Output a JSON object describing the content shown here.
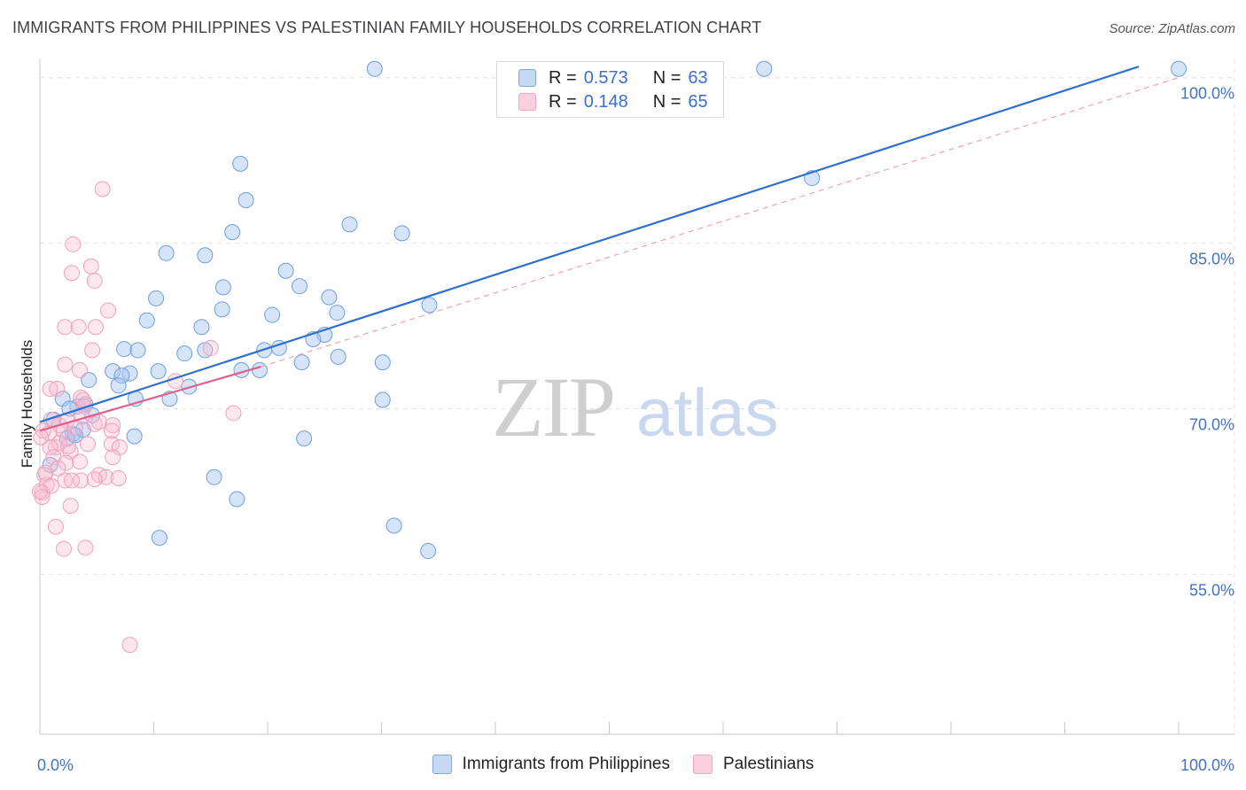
{
  "title": "IMMIGRANTS FROM PHILIPPINES VS PALESTINIAN FAMILY HOUSEHOLDS CORRELATION CHART",
  "source": "Source: ZipAtlas.com",
  "watermark": {
    "zip": "ZIP",
    "atlas": "atlas"
  },
  "colors": {
    "blue_fill": "rgba(164,196,240,0.45)",
    "blue_stroke": "#6f9ee0",
    "blue_line": "#2f6fd0",
    "pink_fill": "rgba(248,186,206,0.35)",
    "pink_stroke": "#f0a0bb",
    "pink_line": "#e0608c",
    "grid": "#e3e3e3",
    "tick_text": "#4472c4"
  },
  "legend_top": [
    {
      "r_label": "R = ",
      "r_value": "0.573",
      "n_label": "N = ",
      "n_value": "63",
      "swatch_fill": "#c5d9f5",
      "swatch_stroke": "#7da6e3"
    },
    {
      "r_label": "R = ",
      "r_value": "0.148",
      "n_label": "N = ",
      "n_value": "65",
      "swatch_fill": "#fcd0de",
      "swatch_stroke": "#f3a6c0"
    }
  ],
  "legend_bottom": [
    {
      "label": "Immigrants from Philippines",
      "swatch_fill": "#c5d9f5",
      "swatch_stroke": "#7da6e3"
    },
    {
      "label": "Palestinians",
      "swatch_fill": "#fcd0de",
      "swatch_stroke": "#f3a6c0"
    }
  ],
  "chart_data": {
    "type": "scatter",
    "title": "IMMIGRANTS FROM PHILIPPINES VS PALESTINIAN FAMILY HOUSEHOLDS CORRELATION CHART",
    "xlabel": "",
    "ylabel": "Family Households",
    "xlim": [
      0,
      100
    ],
    "ylim": [
      40.5,
      101.5
    ],
    "x_tick_labels": [
      {
        "value": 0,
        "label": "0.0%"
      },
      {
        "value": 100,
        "label": "100.0%"
      }
    ],
    "y_tick_labels": [
      {
        "value": 55,
        "label": "55.0%"
      },
      {
        "value": 70,
        "label": "70.0%"
      },
      {
        "value": 85,
        "label": "85.0%"
      },
      {
        "value": 100,
        "label": "100.0%"
      }
    ],
    "y_gridlines": [
      55,
      70,
      85,
      100
    ],
    "series": [
      {
        "name": "Immigrants from Philippines",
        "R": 0.573,
        "N": 63,
        "trend": {
          "x0": 0,
          "y0": 68.8,
          "x1": 96.5,
          "y1": 101.0,
          "style": "solid"
        },
        "points": [
          [
            29.4,
            100.8
          ],
          [
            63.6,
            100.8
          ],
          [
            100,
            100.8
          ],
          [
            17.6,
            92.2
          ],
          [
            67.8,
            90.9
          ],
          [
            18.1,
            88.9
          ],
          [
            16.9,
            86.0
          ],
          [
            27.2,
            86.7
          ],
          [
            31.8,
            85.9
          ],
          [
            11.1,
            84.1
          ],
          [
            14.5,
            83.9
          ],
          [
            21.6,
            82.5
          ],
          [
            16.1,
            81.0
          ],
          [
            22.8,
            81.1
          ],
          [
            25.4,
            80.1
          ],
          [
            10.2,
            80.0
          ],
          [
            34.2,
            79.4
          ],
          [
            16.0,
            79.0
          ],
          [
            20.4,
            78.5
          ],
          [
            26.1,
            78.7
          ],
          [
            9.4,
            78.0
          ],
          [
            14.2,
            77.4
          ],
          [
            25.0,
            76.7
          ],
          [
            24.0,
            76.3
          ],
          [
            30.1,
            74.2
          ],
          [
            7.4,
            75.4
          ],
          [
            8.6,
            75.3
          ],
          [
            12.7,
            75.0
          ],
          [
            14.5,
            75.3
          ],
          [
            19.7,
            75.3
          ],
          [
            21.0,
            75.5
          ],
          [
            23.0,
            74.2
          ],
          [
            26.2,
            74.7
          ],
          [
            6.4,
            73.4
          ],
          [
            7.9,
            73.2
          ],
          [
            7.2,
            73.0
          ],
          [
            4.3,
            72.6
          ],
          [
            10.4,
            73.4
          ],
          [
            17.7,
            73.5
          ],
          [
            19.3,
            73.5
          ],
          [
            6.9,
            72.1
          ],
          [
            13.1,
            72.0
          ],
          [
            8.4,
            70.9
          ],
          [
            11.4,
            70.9
          ],
          [
            2.0,
            70.9
          ],
          [
            3.3,
            70.2
          ],
          [
            4.0,
            70.4
          ],
          [
            30.1,
            70.8
          ],
          [
            2.6,
            70.0
          ],
          [
            4.6,
            69.4
          ],
          [
            1.2,
            69.0
          ],
          [
            2.9,
            67.7
          ],
          [
            3.8,
            68.1
          ],
          [
            8.3,
            67.5
          ],
          [
            2.4,
            67.3
          ],
          [
            23.2,
            67.3
          ],
          [
            3.1,
            67.6
          ],
          [
            0.9,
            64.9
          ],
          [
            15.3,
            63.8
          ],
          [
            17.3,
            61.8
          ],
          [
            31.1,
            59.4
          ],
          [
            10.5,
            58.3
          ],
          [
            34.1,
            57.1
          ]
        ]
      },
      {
        "name": "Palestinians",
        "R": 0.148,
        "N": 65,
        "trend": {
          "x0": 0,
          "y0": 68.0,
          "x1": 19.4,
          "y1": 73.8,
          "style": "solid"
        },
        "trend_extended": {
          "x0": 19.4,
          "y0": 73.8,
          "x1": 100,
          "y1": 100.0,
          "style": "dashed"
        },
        "points": [
          [
            5.5,
            89.9
          ],
          [
            2.9,
            84.9
          ],
          [
            4.5,
            82.9
          ],
          [
            2.8,
            82.3
          ],
          [
            4.8,
            81.6
          ],
          [
            6.0,
            78.9
          ],
          [
            2.2,
            77.4
          ],
          [
            3.4,
            77.4
          ],
          [
            4.9,
            77.4
          ],
          [
            4.6,
            75.3
          ],
          [
            15.0,
            75.5
          ],
          [
            2.2,
            74.0
          ],
          [
            3.5,
            73.5
          ],
          [
            11.9,
            72.5
          ],
          [
            0.9,
            71.8
          ],
          [
            1.5,
            71.8
          ],
          [
            3.6,
            71.0
          ],
          [
            3.8,
            70.8
          ],
          [
            3.9,
            70.2
          ],
          [
            17.0,
            69.6
          ],
          [
            1.0,
            69.0
          ],
          [
            3.7,
            69.3
          ],
          [
            1.7,
            68.5
          ],
          [
            2.4,
            68.9
          ],
          [
            4.8,
            68.6
          ],
          [
            5.2,
            68.8
          ],
          [
            6.4,
            68.5
          ],
          [
            6.3,
            68.0
          ],
          [
            0.3,
            68.0
          ],
          [
            0.8,
            67.8
          ],
          [
            2.1,
            68.0
          ],
          [
            3.1,
            68.3
          ],
          [
            0.1,
            67.4
          ],
          [
            1.7,
            66.9
          ],
          [
            4.2,
            66.8
          ],
          [
            6.3,
            66.8
          ],
          [
            1.4,
            66.5
          ],
          [
            7.0,
            66.5
          ],
          [
            0.9,
            66.5
          ],
          [
            2.7,
            66.1
          ],
          [
            1.2,
            65.6
          ],
          [
            6.4,
            65.6
          ],
          [
            2.3,
            65.1
          ],
          [
            3.5,
            65.2
          ],
          [
            1.6,
            64.6
          ],
          [
            0.4,
            64.0
          ],
          [
            5.2,
            64.0
          ],
          [
            5.8,
            63.8
          ],
          [
            6.9,
            63.7
          ],
          [
            2.2,
            63.5
          ],
          [
            3.6,
            63.5
          ],
          [
            0.6,
            63.1
          ],
          [
            0.2,
            62.4
          ],
          [
            2.7,
            61.2
          ],
          [
            1.4,
            59.3
          ],
          [
            4.0,
            57.4
          ],
          [
            2.1,
            57.3
          ],
          [
            7.9,
            48.6
          ],
          [
            0.5,
            64.2
          ],
          [
            2.5,
            66.6
          ],
          [
            1.0,
            63.0
          ],
          [
            0.2,
            62.0
          ],
          [
            4.8,
            63.6
          ],
          [
            2.8,
            63.5
          ],
          [
            0.0,
            62.5
          ]
        ]
      }
    ]
  }
}
